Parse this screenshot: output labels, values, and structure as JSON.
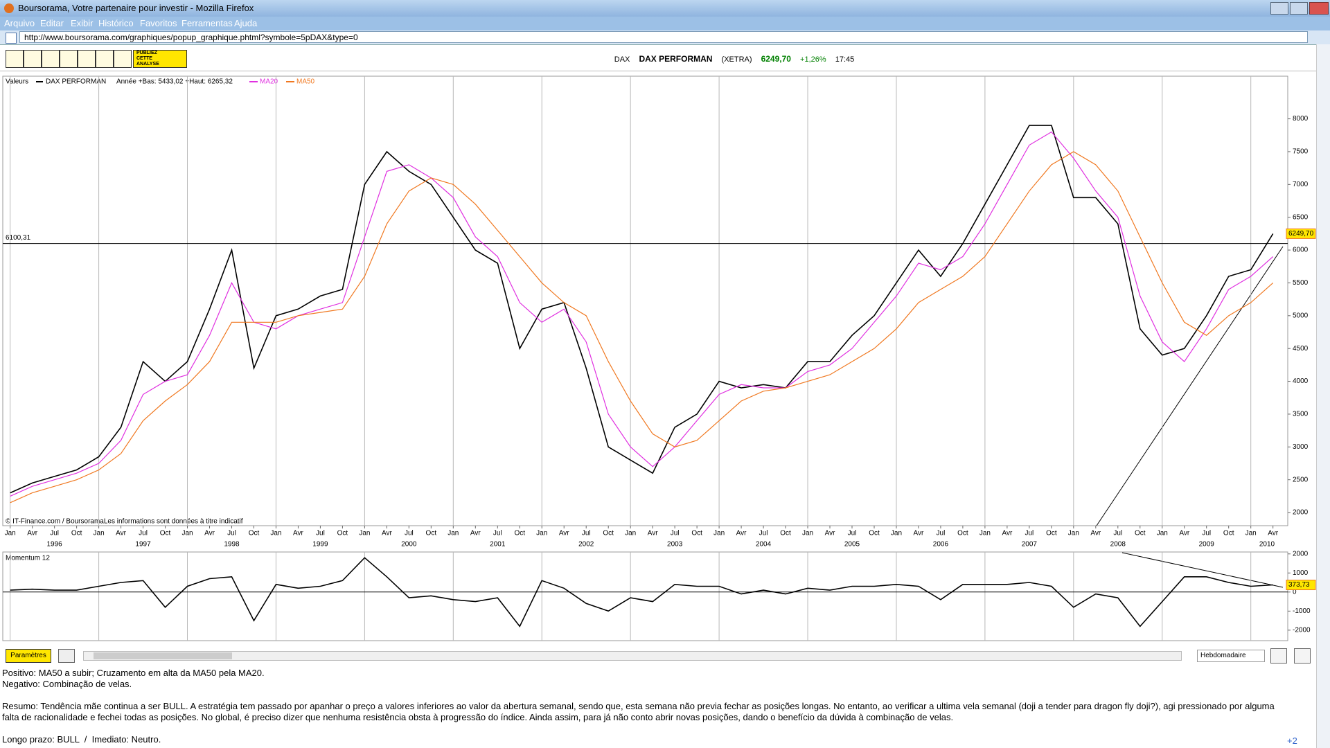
{
  "window": {
    "title": "Boursorama, Votre partenaire pour investir - Mozilla Firefox",
    "menu": [
      "Arquivo",
      "Editar",
      "Exibir",
      "Histórico",
      "Favoritos",
      "Ferramentas",
      "Ajuda"
    ],
    "url": "http://www.boursorama.com/graphiques/popup_graphique.phtml?symbole=5pDAX&type=0"
  },
  "toolbar": {
    "publish": [
      "PUBLIEZ",
      "CETTE",
      "ANALYSE"
    ],
    "quote": {
      "market": "DAX",
      "name": "DAX PERFORMAN",
      "exchange": "(XETRA)",
      "price": "6249,70",
      "change": "+1,26%",
      "time": "17:45"
    }
  },
  "chart_data": [
    {
      "type": "line",
      "legend_label": "Valeurs",
      "info": "Année +Bas: 5433,02 +Haut: 6265,32",
      "credit": "© IT-Finance.com / BoursoramaLes informations sont données à titre indicatif",
      "x": [
        "1996-01",
        "1996-04",
        "1996-07",
        "1996-10",
        "1997-01",
        "1997-04",
        "1997-07",
        "1997-10",
        "1998-01",
        "1998-04",
        "1998-07",
        "1998-10",
        "1999-01",
        "1999-04",
        "1999-07",
        "1999-10",
        "2000-01",
        "2000-04",
        "2000-07",
        "2000-10",
        "2001-01",
        "2001-04",
        "2001-07",
        "2001-10",
        "2002-01",
        "2002-04",
        "2002-07",
        "2002-10",
        "2003-01",
        "2003-04",
        "2003-07",
        "2003-10",
        "2004-01",
        "2004-04",
        "2004-07",
        "2004-10",
        "2005-01",
        "2005-04",
        "2005-07",
        "2005-10",
        "2006-01",
        "2006-04",
        "2006-07",
        "2006-10",
        "2007-01",
        "2007-04",
        "2007-07",
        "2007-10",
        "2008-01",
        "2008-04",
        "2008-07",
        "2008-10",
        "2009-01",
        "2009-04",
        "2009-07",
        "2009-10",
        "2010-01",
        "2010-04"
      ],
      "series": [
        {
          "name": "DAX PERFORMAN",
          "color": "#000000",
          "values": [
            2300,
            2450,
            2550,
            2650,
            2850,
            3300,
            4300,
            4000,
            4300,
            5100,
            6000,
            4200,
            5000,
            5100,
            5300,
            5400,
            7000,
            7500,
            7200,
            7000,
            6500,
            6000,
            5800,
            4500,
            5100,
            5200,
            4200,
            3000,
            2800,
            2600,
            3300,
            3500,
            4000,
            3900,
            3950,
            3900,
            4300,
            4300,
            4700,
            5000,
            5500,
            6000,
            5600,
            6100,
            6700,
            7300,
            7900,
            7900,
            6800,
            6800,
            6400,
            4800,
            4400,
            4500,
            5000,
            5600,
            5700,
            6249.7
          ]
        },
        {
          "name": "MA20",
          "color": "#e030e0",
          "values": [
            2250,
            2400,
            2500,
            2600,
            2750,
            3100,
            3800,
            4000,
            4100,
            4700,
            5500,
            4900,
            4800,
            5000,
            5100,
            5200,
            6200,
            7200,
            7300,
            7100,
            6800,
            6200,
            5900,
            5200,
            4900,
            5100,
            4600,
            3500,
            3000,
            2700,
            3000,
            3400,
            3800,
            3950,
            3900,
            3900,
            4150,
            4250,
            4500,
            4900,
            5300,
            5800,
            5700,
            5900,
            6400,
            7000,
            7600,
            7800,
            7400,
            6900,
            6500,
            5300,
            4600,
            4300,
            4800,
            5400,
            5600,
            5900
          ]
        },
        {
          "name": "MA50",
          "color": "#f07820",
          "values": [
            2150,
            2300,
            2400,
            2500,
            2650,
            2900,
            3400,
            3700,
            3950,
            4300,
            4900,
            4900,
            4900,
            5000,
            5050,
            5100,
            5600,
            6400,
            6900,
            7100,
            7000,
            6700,
            6300,
            5900,
            5500,
            5200,
            5000,
            4300,
            3700,
            3200,
            3000,
            3100,
            3400,
            3700,
            3850,
            3900,
            4000,
            4100,
            4300,
            4500,
            4800,
            5200,
            5400,
            5600,
            5900,
            6400,
            6900,
            7300,
            7500,
            7300,
            6900,
            6200,
            5500,
            4900,
            4700,
            5000,
            5200,
            5500
          ]
        }
      ],
      "xlim": [
        "1995-12",
        "2010-06"
      ],
      "ylim": [
        1800,
        8650
      ],
      "yticks": [
        2000,
        2500,
        3000,
        3500,
        4000,
        4500,
        5000,
        5500,
        6000,
        6500,
        7000,
        7500,
        8000
      ],
      "xticks": [
        {
          "value": "1996-01",
          "label": "Jan"
        },
        {
          "value": "1996-04",
          "label": "Avr"
        },
        {
          "value": "1996-07",
          "label": "Jul"
        },
        {
          "value": "1996-10",
          "label": "Oct"
        },
        {
          "value": "1997-01",
          "label": "Jan"
        },
        {
          "value": "1997-04",
          "label": "Avr"
        },
        {
          "value": "1997-07",
          "label": "Jul"
        },
        {
          "value": "1997-10",
          "label": "Oct"
        },
        {
          "value": "1998-01",
          "label": "Jan"
        },
        {
          "value": "1998-04",
          "label": "Avr"
        },
        {
          "value": "1998-07",
          "label": "Jul"
        },
        {
          "value": "1998-10",
          "label": "Oct"
        },
        {
          "value": "1999-01",
          "label": "Jan"
        },
        {
          "value": "1999-04",
          "label": "Avr"
        },
        {
          "value": "1999-07",
          "label": "Jul"
        },
        {
          "value": "1999-10",
          "label": "Oct"
        },
        {
          "value": "2000-01",
          "label": "Jan"
        },
        {
          "value": "2000-04",
          "label": "Avr"
        },
        {
          "value": "2000-07",
          "label": "Jul"
        },
        {
          "value": "2000-10",
          "label": "Oct"
        },
        {
          "value": "2001-01",
          "label": "Jan"
        },
        {
          "value": "2001-04",
          "label": "Avr"
        },
        {
          "value": "2001-07",
          "label": "Jul"
        },
        {
          "value": "2001-10",
          "label": "Oct"
        },
        {
          "value": "2002-01",
          "label": "Jan"
        },
        {
          "value": "2002-04",
          "label": "Avr"
        },
        {
          "value": "2002-07",
          "label": "Jul"
        },
        {
          "value": "2002-10",
          "label": "Oct"
        },
        {
          "value": "2003-01",
          "label": "Jan"
        },
        {
          "value": "2003-04",
          "label": "Avr"
        },
        {
          "value": "2003-07",
          "label": "Jul"
        },
        {
          "value": "2003-10",
          "label": "Oct"
        },
        {
          "value": "2004-01",
          "label": "Jan"
        },
        {
          "value": "2004-04",
          "label": "Avr"
        },
        {
          "value": "2004-07",
          "label": "Jul"
        },
        {
          "value": "2004-10",
          "label": "Oct"
        },
        {
          "value": "2005-01",
          "label": "Jan"
        },
        {
          "value": "2005-04",
          "label": "Avr"
        },
        {
          "value": "2005-07",
          "label": "Jul"
        },
        {
          "value": "2005-10",
          "label": "Oct"
        },
        {
          "value": "2006-01",
          "label": "Jan"
        },
        {
          "value": "2006-04",
          "label": "Avr"
        },
        {
          "value": "2006-07",
          "label": "Jul"
        },
        {
          "value": "2006-10",
          "label": "Oct"
        },
        {
          "value": "2007-01",
          "label": "Jan"
        },
        {
          "value": "2007-04",
          "label": "Avr"
        },
        {
          "value": "2007-07",
          "label": "Jul"
        },
        {
          "value": "2007-10",
          "label": "Oct"
        },
        {
          "value": "2008-01",
          "label": "Jan"
        },
        {
          "value": "2008-04",
          "label": "Avr"
        },
        {
          "value": "2008-07",
          "label": "Jul"
        },
        {
          "value": "2008-10",
          "label": "Oct"
        },
        {
          "value": "2009-01",
          "label": "Jan"
        },
        {
          "value": "2009-04",
          "label": "Avr"
        },
        {
          "value": "2009-07",
          "label": "Jul"
        },
        {
          "value": "2009-10",
          "label": "Oct"
        },
        {
          "value": "2010-01",
          "label": "Jan"
        },
        {
          "value": "2010-04",
          "label": "Avr"
        }
      ],
      "year_ticks": [
        1996,
        1997,
        1998,
        1999,
        2000,
        2001,
        2002,
        2003,
        2004,
        2005,
        2006,
        2007,
        2008,
        2009,
        2010
      ],
      "hline": {
        "value": 6100.31,
        "label": "6100,31"
      },
      "last": {
        "value": 6249.7,
        "label": "6249,70"
      }
    },
    {
      "type": "line",
      "title": "Momentum 12",
      "x": [
        "1996-01",
        "1996-04",
        "1996-07",
        "1996-10",
        "1997-01",
        "1997-04",
        "1997-07",
        "1997-10",
        "1998-01",
        "1998-04",
        "1998-07",
        "1998-10",
        "1999-01",
        "1999-04",
        "1999-07",
        "1999-10",
        "2000-01",
        "2000-04",
        "2000-07",
        "2000-10",
        "2001-01",
        "2001-04",
        "2001-07",
        "2001-10",
        "2002-01",
        "2002-04",
        "2002-07",
        "2002-10",
        "2003-01",
        "2003-04",
        "2003-07",
        "2003-10",
        "2004-01",
        "2004-04",
        "2004-07",
        "2004-10",
        "2005-01",
        "2005-04",
        "2005-07",
        "2005-10",
        "2006-01",
        "2006-04",
        "2006-07",
        "2006-10",
        "2007-01",
        "2007-04",
        "2007-07",
        "2007-10",
        "2008-01",
        "2008-04",
        "2008-07",
        "2008-10",
        "2009-01",
        "2009-04",
        "2009-07",
        "2009-10",
        "2010-01",
        "2010-04"
      ],
      "series": [
        {
          "color": "#000000",
          "values": [
            100,
            150,
            100,
            100,
            300,
            500,
            600,
            -800,
            300,
            700,
            800,
            -1500,
            400,
            200,
            300,
            600,
            1800,
            800,
            -300,
            -200,
            -400,
            -500,
            -300,
            -1800,
            600,
            200,
            -600,
            -1000,
            -300,
            -500,
            400,
            300,
            300,
            -100,
            100,
            -100,
            200,
            100,
            300,
            300,
            400,
            300,
            -400,
            400,
            400,
            400,
            500,
            300,
            -800,
            -100,
            -300,
            -1800,
            -500,
            800,
            800,
            500,
            300,
            373.73
          ]
        }
      ],
      "xlim": [
        "1995-12",
        "2010-06"
      ],
      "ylim": [
        -2550,
        2100
      ],
      "yticks": [
        2000,
        1000,
        0,
        -1000,
        -2000
      ],
      "last": {
        "value": 373.73,
        "label": "373,73"
      }
    }
  ],
  "controls": {
    "params": "Paramètres",
    "period": "Hebdomadaire"
  },
  "analysis": {
    "lines": [
      "Positivo: MA50 a subir; Cruzamento em alta da MA50 pela MA20.",
      "Negativo: Combinação de velas.",
      "Resumo: Tendência mãe continua a ser BULL. A estratégia tem passado por apanhar o preço a valores inferiores ao valor da abertura semanal, sendo que, esta semana não previa fechar as posições longas. No entanto, ao verificar a ultima vela semanal (doji a tender para dragon fly doji?), agi pressionado por alguma falta de racionalidade e fechei todas as posições. No global, é preciso dizer que nenhuma resistência obsta à progressão do índice. Ainda assim, para já não conto abrir novas posições, dando o benefício da dúvida à combinação de velas.",
      "Longo prazo: BULL  /  Imediato: Neutro."
    ],
    "more": "+2"
  }
}
